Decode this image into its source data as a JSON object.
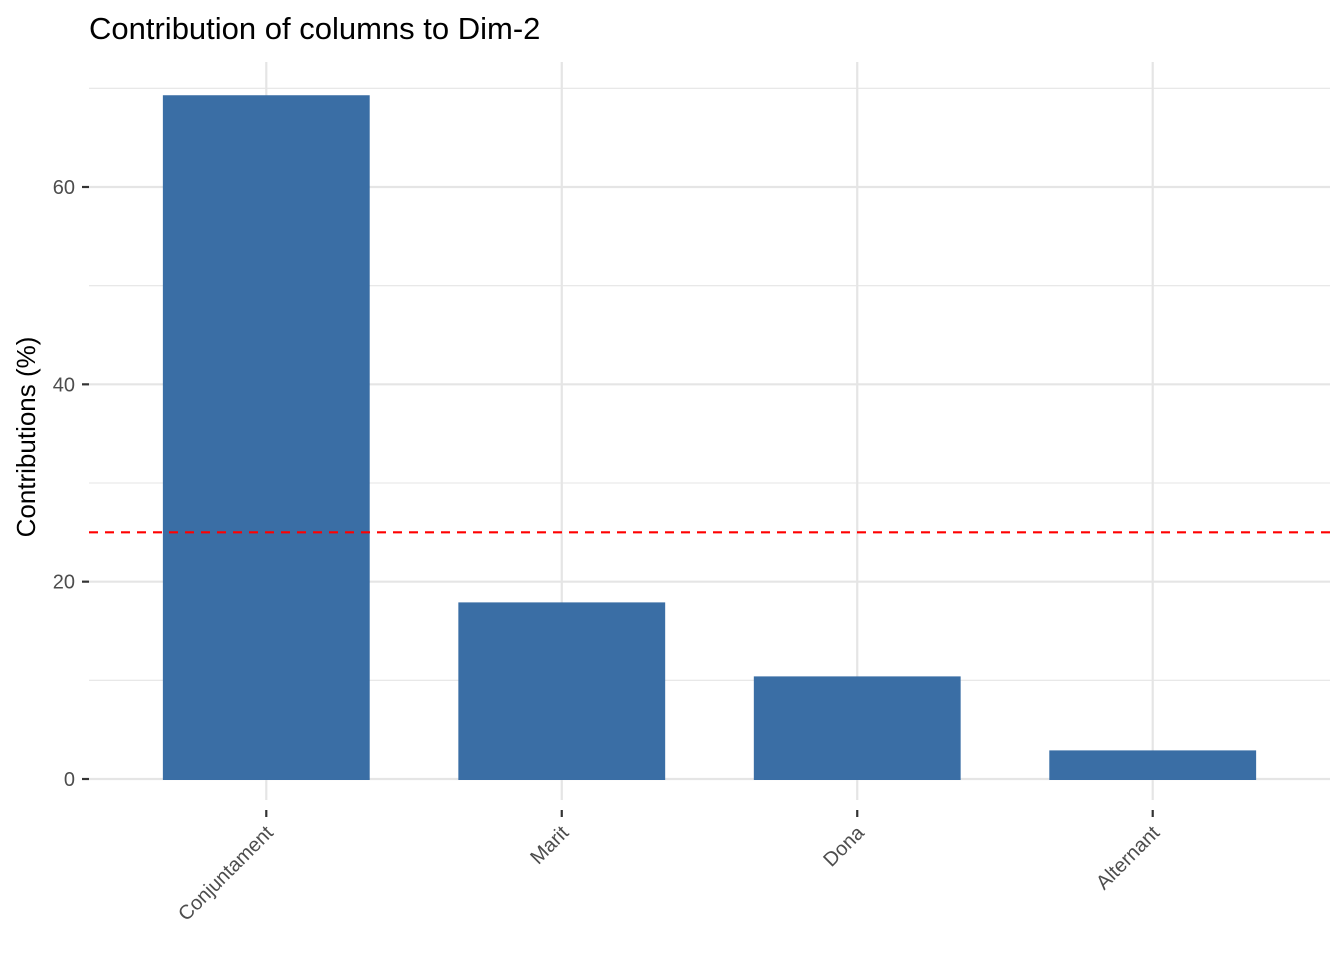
{
  "chart_data": {
    "type": "bar",
    "title": "Contribution of columns to Dim-2",
    "xlabel": "",
    "ylabel": "Contributions (%)",
    "categories": [
      "Conjuntament",
      "Marit",
      "Dona",
      "Alternant"
    ],
    "values": [
      69.3,
      17.9,
      10.4,
      2.9
    ],
    "yticks": [
      0,
      20,
      40,
      60
    ],
    "ylim": [
      0,
      72.8
    ],
    "reference_line": 25,
    "bar_color": "#3A6EA5",
    "reference_color": "#FF0000",
    "grid": true,
    "legend": "none"
  }
}
